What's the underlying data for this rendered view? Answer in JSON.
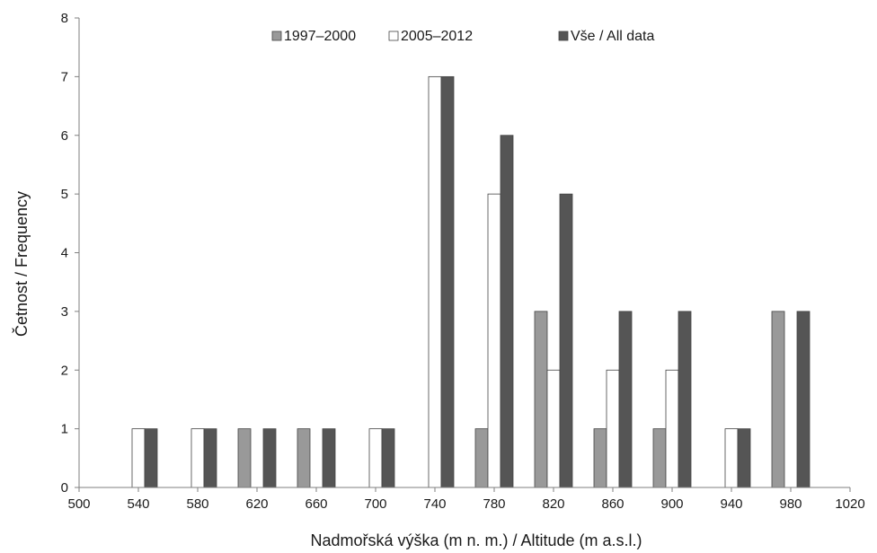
{
  "chart_data": {
    "type": "bar",
    "xlabel": "Nadmořská výška (m n. m.) / Altitude (m a.s.l.)",
    "ylabel": "Četnost  /  Frequency",
    "xlim": [
      500,
      1020
    ],
    "ylim": [
      0,
      8
    ],
    "x_ticks": [
      "500",
      "540",
      "580",
      "620",
      "660",
      "700",
      "740",
      "780",
      "820",
      "860",
      "900",
      "940",
      "980",
      "1020"
    ],
    "y_ticks": [
      "0",
      "1",
      "2",
      "3",
      "4",
      "5",
      "6",
      "7",
      "8"
    ],
    "categories": [
      540,
      580,
      620,
      660,
      700,
      740,
      780,
      820,
      860,
      900,
      940,
      980
    ],
    "legend_position": "top",
    "grid": false,
    "series": [
      {
        "name": "1997–2000",
        "color": "#999999",
        "values": [
          0,
          0,
          1,
          1,
          0,
          0,
          1,
          3,
          1,
          1,
          0,
          3
        ]
      },
      {
        "name": "2005–2012",
        "color": "#ffffff",
        "values": [
          1,
          1,
          0,
          0,
          1,
          7,
          5,
          2,
          2,
          2,
          1,
          0
        ]
      },
      {
        "name": "Vše / All data",
        "color": "#555555",
        "values": [
          1,
          1,
          1,
          1,
          1,
          7,
          6,
          5,
          3,
          3,
          1,
          3
        ]
      }
    ]
  }
}
